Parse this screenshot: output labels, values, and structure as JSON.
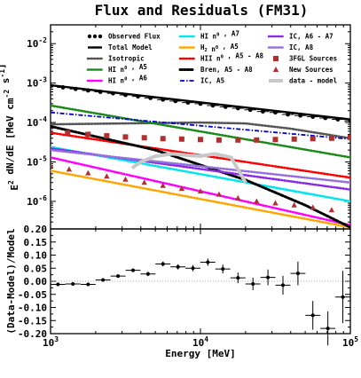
{
  "chart_data": [
    {
      "type": "line",
      "panel": "top",
      "title": "Flux and Residuals (FM31)",
      "ylabel": "E^2 dN/dE [MeV cm^-2 s^-1]",
      "xlabel": "",
      "x_scale": "log",
      "y_scale": "log",
      "xlim": [
        1000,
        100000
      ],
      "ylim": [
        2e-07,
        0.03
      ],
      "legend_position": "top (3 columns)",
      "x_tick_labels": [
        "10^3",
        "10^4",
        "10^5"
      ],
      "y_tick_labels": [
        "10^-6",
        "10^-5",
        "10^-4",
        "10^-3",
        "10^-2"
      ],
      "series": [
        {
          "name": "Observed Flux",
          "color": "#000000",
          "style": "markers-errorbars",
          "x": [
            1000,
            1210,
            1470,
            1780,
            2150,
            2610,
            3160,
            3830,
            4640,
            5620,
            6810,
            8250,
            10000,
            12100,
            14700,
            17800,
            21500,
            26100,
            31600,
            38300,
            46400,
            56200,
            68100,
            82500,
            100000
          ],
          "y": [
            0.00085,
            0.00078,
            0.00071,
            0.00065,
            0.0006,
            0.00055,
            0.0005,
            0.00046,
            0.00042,
            0.00038,
            0.00035,
            0.00032,
            0.0003,
            0.00027,
            0.00025,
            0.00023,
            0.00021,
            0.00019,
            0.00018,
            0.00016,
            0.00015,
            0.00014,
            0.00013,
            0.00012,
            0.00011
          ]
        },
        {
          "name": "Total Model",
          "color": "#000000",
          "style": "solid",
          "x": [
            1000,
            100000
          ],
          "y": [
            0.00088,
            0.00012
          ]
        },
        {
          "name": "Isotropic",
          "color": "#555555",
          "style": "dotted",
          "x": [
            1000,
            3000,
            10000,
            20000,
            40000,
            100000
          ],
          "y": [
            9e-05,
            9.5e-05,
            0.0001,
            9.5e-05,
            7e-05,
            4e-05
          ]
        },
        {
          "name": "HI n^0 , A5",
          "color": "#1a8a1a",
          "style": "dotted",
          "x": [
            1000,
            100000
          ],
          "y": [
            0.00027,
            1.3e-05
          ]
        },
        {
          "name": "HI n^0 , A6",
          "color": "#ff00ff",
          "style": "dotted",
          "x": [
            1000,
            100000
          ],
          "y": [
            1.3e-05,
            2.5e-07
          ]
        },
        {
          "name": "HI n^0 , A7",
          "color": "#00e5ee",
          "style": "dotted",
          "x": [
            1000,
            100000
          ],
          "y": [
            2.4e-05,
            1e-06
          ]
        },
        {
          "name": "H_2 n^0 , A5",
          "color": "#ffa500",
          "style": "dotted",
          "x": [
            1000,
            100000
          ],
          "y": [
            6e-06,
            2.2e-07
          ]
        },
        {
          "name": "HII n^0 , A5 - A8",
          "color": "#ff0000",
          "style": "dotted",
          "x": [
            1000,
            100000
          ],
          "y": [
            5.5e-05,
            4e-06
          ]
        },
        {
          "name": "Bren, A5 - A8",
          "color": "#000000",
          "style": "dotted-thick",
          "x": [
            1000,
            5000,
            20000,
            50000,
            100000
          ],
          "y": [
            8e-05,
            2e-05,
            3.5e-06,
            8e-07,
            2.2e-07
          ]
        },
        {
          "name": "IC, A5",
          "color": "#0000cd",
          "style": "dashdot",
          "x": [
            1000,
            100000
          ],
          "y": [
            0.00018,
            3.8e-05
          ]
        },
        {
          "name": "IC, A6 - A7",
          "color": "#8a2be2",
          "style": "dotted",
          "x": [
            1000,
            100000
          ],
          "y": [
            2.2e-05,
            2e-06
          ]
        },
        {
          "name": "IC, A8",
          "color": "#9370db",
          "style": "dotted",
          "x": [
            1000,
            100000
          ],
          "y": [
            2e-05,
            3e-06
          ]
        },
        {
          "name": "3FGL Sources",
          "color": "#b03030",
          "style": "squares",
          "x": [
            1300,
            1780,
            2370,
            3160,
            4220,
            5620,
            7500,
            10000,
            13300,
            17800,
            23700,
            31600,
            42200,
            56200,
            75000,
            100000
          ],
          "y": [
            5.5e-05,
            5e-05,
            4.6e-05,
            4.3e-05,
            4.1e-05,
            3.9e-05,
            3.8e-05,
            3.7e-05,
            3.6e-05,
            3.6e-05,
            3.6e-05,
            3.7e-05,
            3.8e-05,
            3.9e-05,
            4e-05,
            4.2e-05
          ]
        },
        {
          "name": "New Sources",
          "color": "#b03030",
          "style": "triangles",
          "x": [
            1000,
            1330,
            1780,
            2370,
            3160,
            4220,
            5620,
            7500,
            10000,
            13300,
            17800,
            23700,
            31600,
            42200,
            56200,
            75000
          ],
          "y": [
            8e-06,
            6.5e-06,
            5.2e-06,
            4.3e-06,
            3.6e-06,
            3e-06,
            2.5e-06,
            2.1e-06,
            1.8e-06,
            1.5e-06,
            1.2e-06,
            1e-06,
            9e-07,
            8e-07,
            7e-07,
            6e-07
          ]
        },
        {
          "name": "data - model",
          "color": "#c8c8c8",
          "style": "solid-thick",
          "x": [
            4000,
            5000,
            6500,
            8000,
            10000,
            12500,
            16000,
            20000
          ],
          "y": [
            1e-05,
            1.4e-05,
            1.6e-05,
            1.5e-05,
            1.4e-05,
            1.6e-05,
            1.3e-05,
            3e-06
          ]
        }
      ],
      "data_model_extra": {
        "x": [
          3500,
          4000
        ],
        "y": [
          7e-06,
          1e-05
        ]
      },
      "legend": {
        "columns": [
          [
            "Observed Flux",
            "Total Model",
            "Isotropic",
            "HI n^0 , A5",
            "HI n^0 , A6"
          ],
          [
            "HI n^0 , A7",
            "H_2 n^0 , A5",
            "HII n^0 , A5 - A8",
            "Bren, A5 - A8",
            "IC, A5"
          ],
          [
            "IC, A6 - A7",
            "IC, A8",
            "3FGL Sources",
            "New Sources",
            "data - model"
          ]
        ]
      }
    },
    {
      "type": "scatter",
      "panel": "bottom",
      "ylabel": "(Data-Model)/Model",
      "xlabel": "Energy [MeV]",
      "x_scale": "log",
      "xlim": [
        1000,
        100000
      ],
      "ylim": [
        -0.2,
        0.2
      ],
      "x_tick_labels": [
        "10^3",
        "10^4",
        "10^5"
      ],
      "y_tick_labels": [
        "0.20",
        "0.15",
        "0.10",
        "0.05",
        "0.00",
        "-0.05",
        "-0.10",
        "-0.15",
        "-0.20"
      ],
      "reference_line": 0.0,
      "points": {
        "x": [
          1120,
          1410,
          1780,
          2240,
          2820,
          3550,
          4470,
          5620,
          7080,
          8910,
          11200,
          14100,
          17800,
          22400,
          28200,
          35500,
          44700,
          56200,
          70800,
          89100
        ],
        "y": [
          -0.012,
          -0.01,
          -0.012,
          0.005,
          0.02,
          0.042,
          0.028,
          0.066,
          0.055,
          0.05,
          0.073,
          0.047,
          0.013,
          -0.01,
          0.015,
          -0.015,
          0.03,
          -0.13,
          -0.18,
          -0.06
        ],
        "err": [
          0.004,
          0.004,
          0.004,
          0.005,
          0.006,
          0.007,
          0.008,
          0.009,
          0.01,
          0.012,
          0.014,
          0.017,
          0.02,
          0.024,
          0.03,
          0.036,
          0.045,
          0.055,
          0.065,
          0.1
        ],
        "color": "#000000"
      }
    }
  ]
}
